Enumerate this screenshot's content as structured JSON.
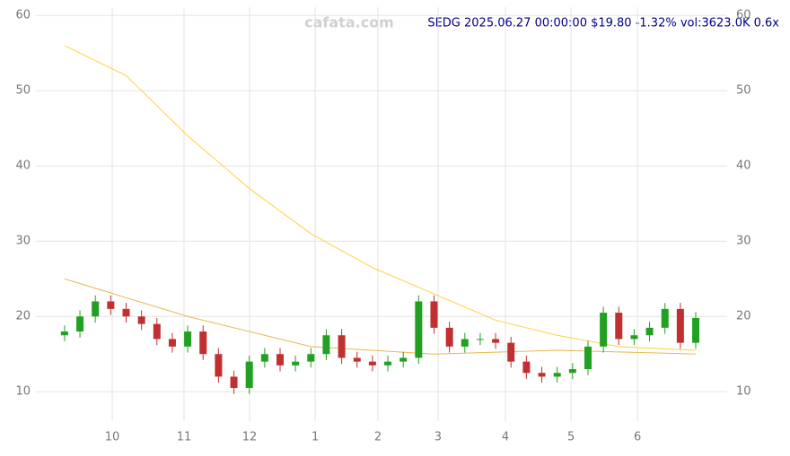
{
  "chart_data": {
    "type": "candlestick",
    "title": "SEDG 2025.06.27 00:00:00 $19.80 -1.32% vol:3623.0K 0.6x",
    "watermark": "cafata.com",
    "x": [
      0,
      5,
      10,
      15,
      20,
      25,
      30,
      35,
      40,
      45,
      50,
      55,
      60,
      65,
      70,
      75,
      80,
      85,
      90,
      95,
      100,
      105,
      110,
      115,
      120,
      125,
      130,
      135,
      140,
      145,
      150,
      155,
      160,
      165,
      170,
      175,
      180,
      185,
      190,
      195,
      200,
      205
    ],
    "open": [
      17.5,
      18,
      20,
      22,
      21,
      20,
      19,
      17,
      16,
      18,
      15,
      12,
      10.5,
      14,
      15,
      13.5,
      14,
      15,
      17.5,
      14.5,
      14,
      13.5,
      14,
      14.5,
      22,
      18.5,
      16,
      17,
      17,
      16.5,
      14,
      12.5,
      12,
      12.5,
      13,
      16,
      20.5,
      17,
      17.5,
      18.5,
      21,
      16.5
    ],
    "high": [
      18.8,
      20.8,
      22.8,
      22.8,
      21.8,
      20.8,
      19.8,
      17.8,
      18.8,
      18.8,
      15.8,
      12.8,
      14.8,
      15.8,
      15.8,
      14.8,
      15.8,
      18.3,
      18.3,
      15.3,
      14.8,
      14.8,
      15.3,
      22.8,
      22.8,
      19.3,
      17.8,
      17.8,
      17.8,
      17.3,
      14.8,
      13.3,
      13.3,
      13.8,
      16.8,
      21.3,
      21.3,
      18.3,
      19.3,
      21.8,
      21.8,
      20.6
    ],
    "low": [
      16.7,
      17.2,
      19.2,
      20.2,
      19.2,
      18.2,
      16.2,
      15.2,
      15.2,
      14.2,
      11.2,
      9.7,
      9.7,
      13.2,
      12.7,
      12.7,
      13.2,
      14.2,
      13.7,
      13.2,
      12.7,
      12.7,
      13.2,
      13.7,
      17.7,
      15.2,
      15.2,
      16.2,
      15.7,
      13.2,
      11.7,
      11.2,
      11.2,
      11.7,
      12.2,
      15.2,
      16.2,
      16.2,
      16.7,
      17.7,
      15.7,
      15.7
    ],
    "close": [
      18,
      20,
      22,
      21,
      20,
      19,
      17,
      16,
      18,
      15,
      12,
      10.5,
      14,
      15,
      13.5,
      14,
      15,
      17.5,
      14.5,
      14,
      13.5,
      14,
      14.5,
      22,
      18.5,
      16,
      17,
      17,
      16.5,
      14,
      12.5,
      12,
      12.5,
      13,
      16,
      20.5,
      17,
      17.5,
      18.5,
      21,
      16.5,
      19.8
    ],
    "up_color": "#22a022",
    "down_color": "#c03030",
    "lines": [
      {
        "color": "#ffd23c",
        "x": [
          0,
          20,
          40,
          60,
          80,
          100,
          120,
          140,
          160,
          180,
          205
        ],
        "values": [
          56,
          52,
          44,
          37,
          31,
          26.5,
          23,
          19.5,
          17.5,
          16,
          15.5
        ]
      },
      {
        "color": "#e8b84a",
        "x": [
          0,
          40,
          80,
          120,
          160,
          205
        ],
        "values": [
          25,
          20,
          16,
          15,
          15.5,
          15
        ]
      }
    ],
    "xlim": [
      -9.3,
      215.2
    ],
    "xticks": [
      {
        "value": 15.5,
        "label": "10"
      },
      {
        "value": 38.8,
        "label": "11"
      },
      {
        "value": 60.1,
        "label": "12"
      },
      {
        "value": 81.4,
        "label": "1"
      },
      {
        "value": 101.8,
        "label": "2"
      },
      {
        "value": 121.3,
        "label": "3"
      },
      {
        "value": 143.2,
        "label": "4"
      },
      {
        "value": 164.5,
        "label": "5"
      },
      {
        "value": 186.1,
        "label": "6"
      }
    ],
    "ylim": [
      6.1,
      61.1
    ],
    "yticks": [
      10,
      20,
      30,
      40,
      50,
      60
    ],
    "grid": true
  }
}
